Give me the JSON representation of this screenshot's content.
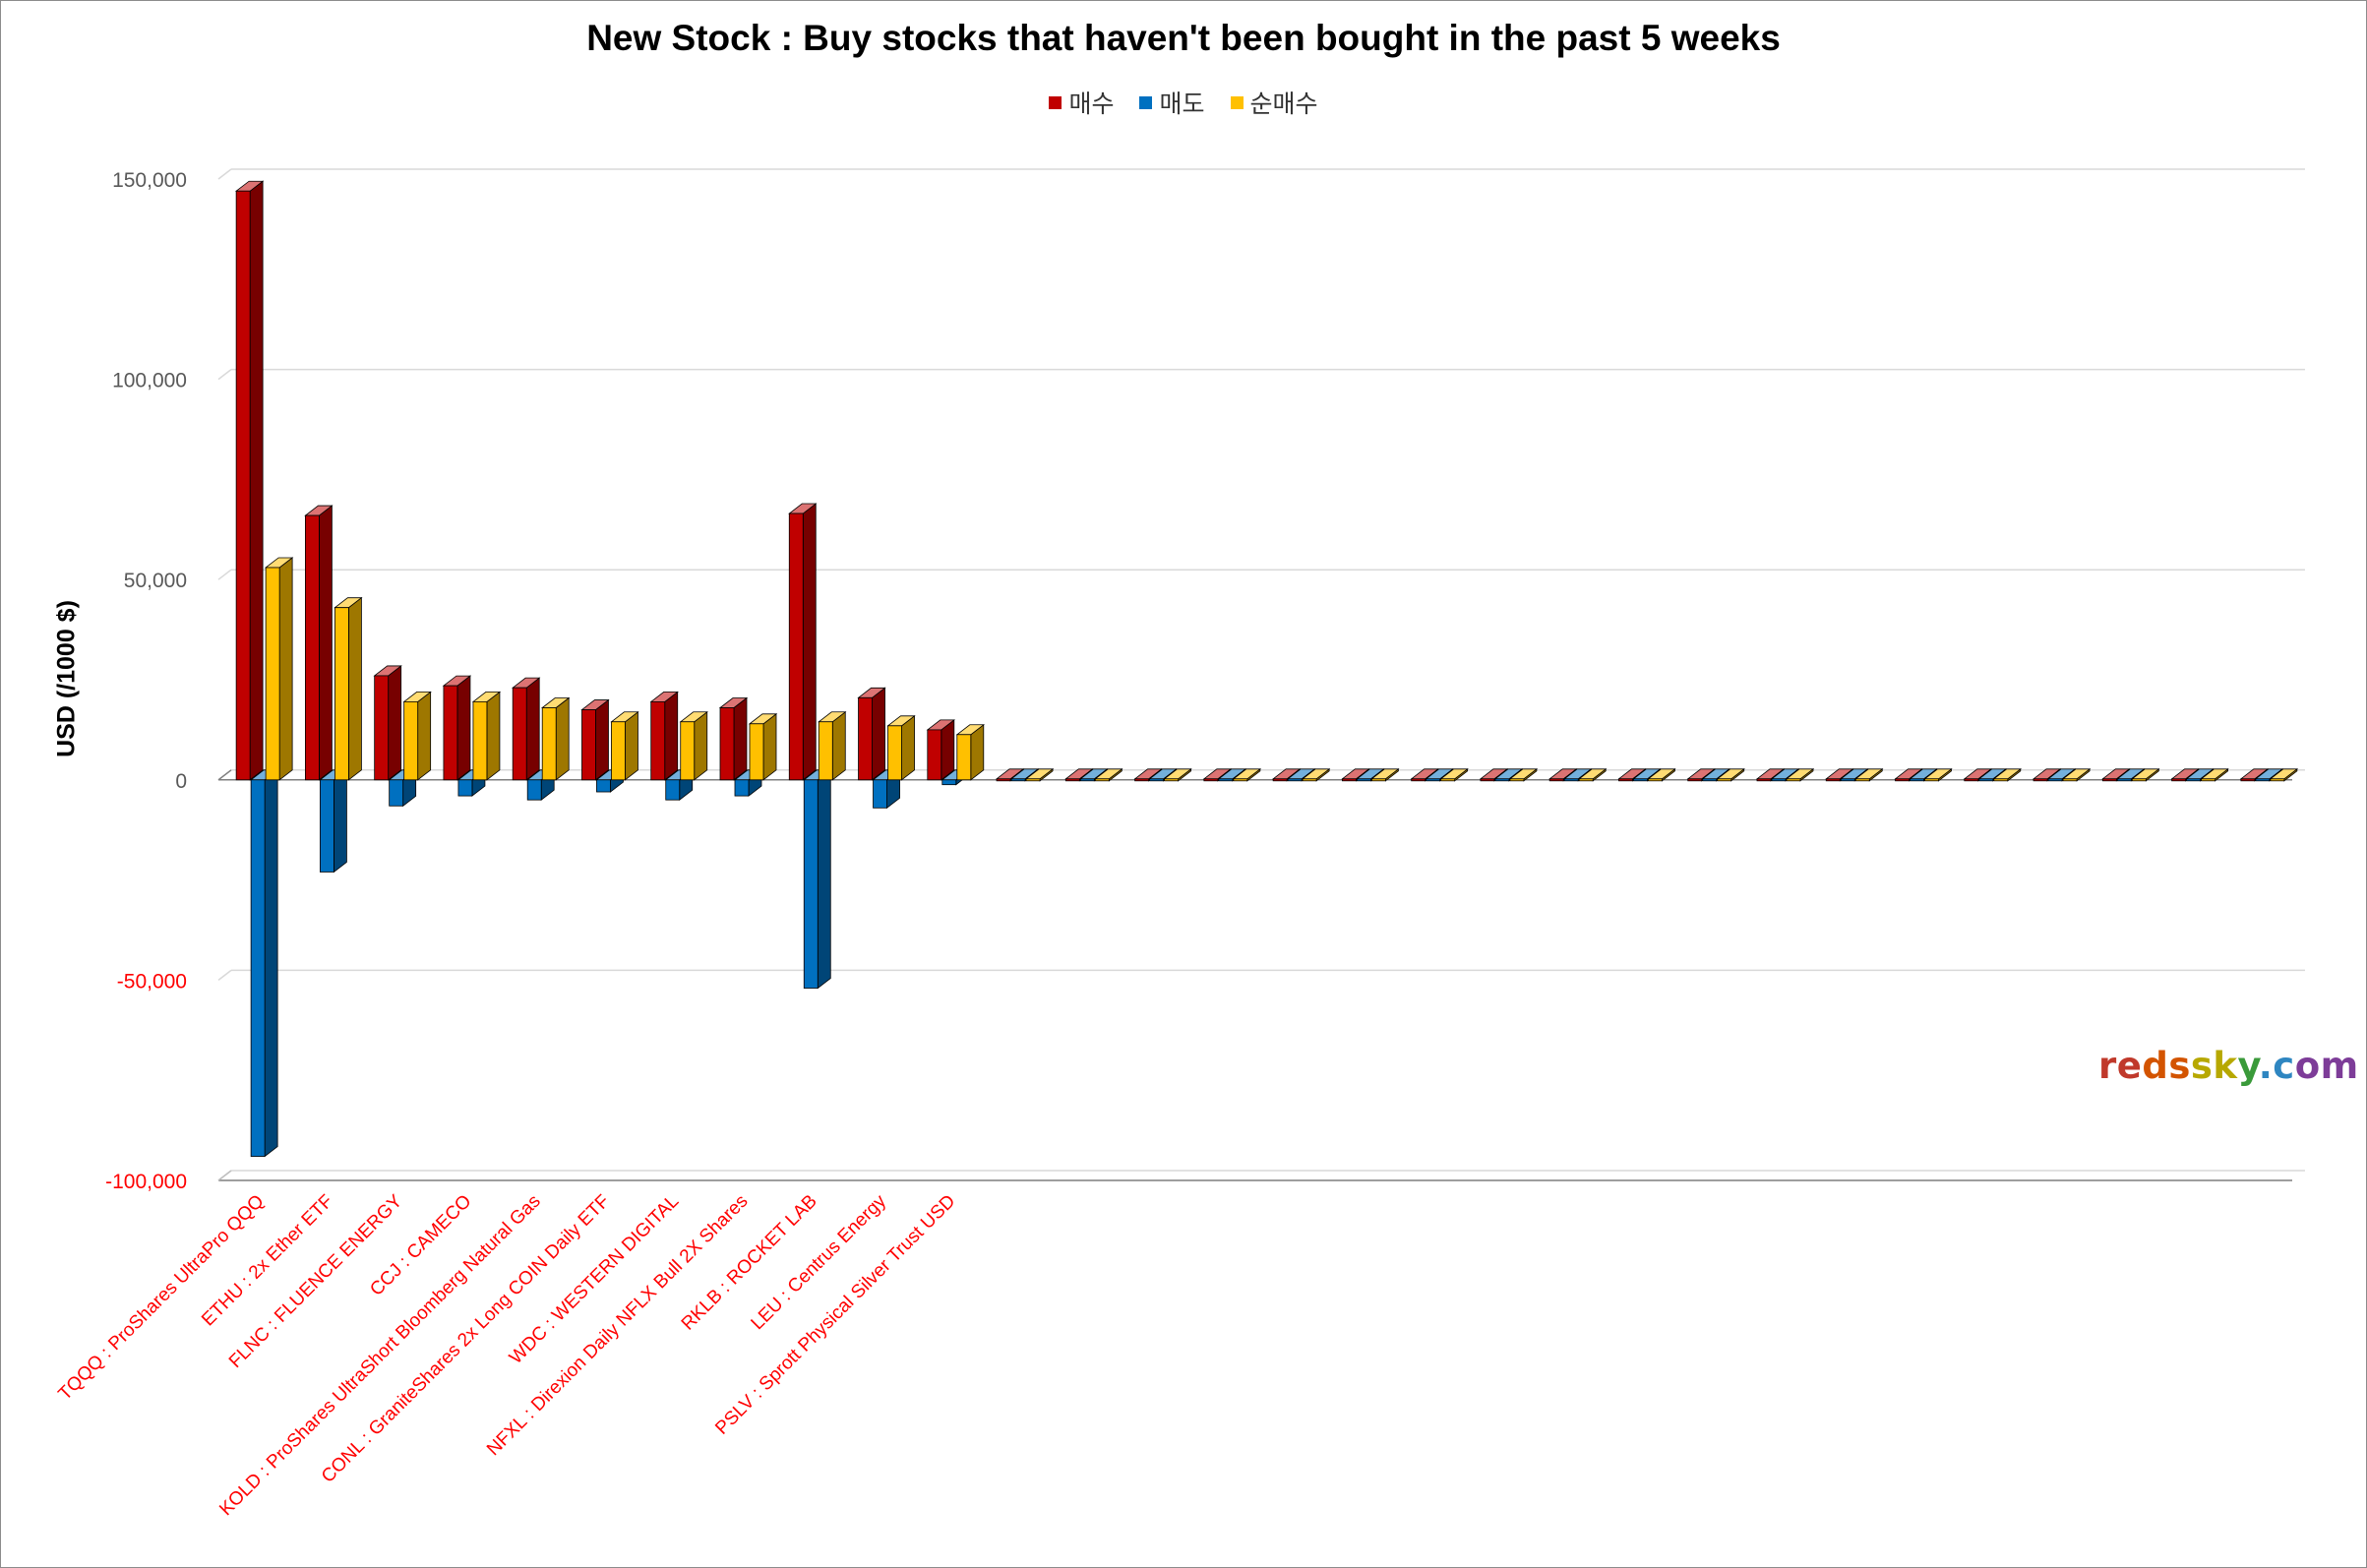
{
  "title": "New Stock : Buy stocks that haven't been bought in the past 5 weeks",
  "legend": [
    {
      "label": "매수",
      "color": "#c00000"
    },
    {
      "label": "매도",
      "color": "#0070c0"
    },
    {
      "label": "순매수",
      "color": "#ffc000"
    }
  ],
  "watermark": {
    "parts": [
      {
        "text": "re",
        "color": "#c0392b"
      },
      {
        "text": "ds",
        "color": "#d35400"
      },
      {
        "text": "sk",
        "color": "#b7a800"
      },
      {
        "text": "y",
        "color": "#3a9a3a"
      },
      {
        "text": ".c",
        "color": "#2e86c1"
      },
      {
        "text": "om",
        "color": "#7d3c98"
      }
    ]
  },
  "chart_data": {
    "type": "bar",
    "title": "New Stock : Buy stocks that haven't been bought in the past 5 weeks",
    "ylabel": "USD (/1000 $)",
    "ylim": [
      -100000,
      150000
    ],
    "yticks": [
      150000,
      100000,
      50000,
      0,
      -50000,
      -100000
    ],
    "ytick_labels": [
      "150,000",
      "100,000",
      "50,000",
      "0",
      "-50,000",
      "-100,000"
    ],
    "grid": true,
    "legend_position": "top",
    "categories": [
      "TQQQ : ProShares UltraPro QQQ",
      "ETHU : 2x Ether ETF",
      "FLNC : FLUENCE ENERGY",
      "CCJ : CAMECO",
      "KOLD : ProShares UltraShort Bloomberg Natural Gas",
      "CONL : GraniteShares 2x Long COIN Daily ETF",
      "WDC : WESTERN DIGITAL",
      "NFXL : Direxion Daily NFLX Bull 2X Shares",
      "RKLB : ROCKET LAB",
      "LEU : Centrus Energy",
      "PSLV : Sprott Physical Silver Trust USD",
      "",
      "",
      "",
      "",
      "",
      "",
      "",
      "",
      "",
      "",
      "",
      "",
      "",
      "",
      "",
      "",
      "",
      "",
      ""
    ],
    "series": [
      {
        "name": "매수",
        "color": "#c00000",
        "values": [
          147000,
          66000,
          26000,
          23500,
          23000,
          17500,
          19500,
          18000,
          66500,
          20500,
          12500,
          0,
          0,
          0,
          0,
          0,
          0,
          0,
          0,
          0,
          0,
          0,
          0,
          0,
          0,
          0,
          0,
          0,
          0,
          0
        ]
      },
      {
        "name": "매도",
        "color": "#0070c0",
        "values": [
          -94000,
          -23000,
          -6500,
          -4000,
          -5000,
          -3000,
          -5000,
          -4000,
          -52000,
          -7000,
          -1200,
          0,
          0,
          0,
          0,
          0,
          0,
          0,
          0,
          0,
          0,
          0,
          0,
          0,
          0,
          0,
          0,
          0,
          0,
          0
        ]
      },
      {
        "name": "순매수",
        "color": "#ffc000",
        "values": [
          53000,
          43000,
          19500,
          19500,
          18000,
          14500,
          14500,
          14000,
          14500,
          13500,
          11300,
          0,
          0,
          0,
          0,
          0,
          0,
          0,
          0,
          0,
          0,
          0,
          0,
          0,
          0,
          0,
          0,
          0,
          0,
          0
        ]
      }
    ]
  }
}
